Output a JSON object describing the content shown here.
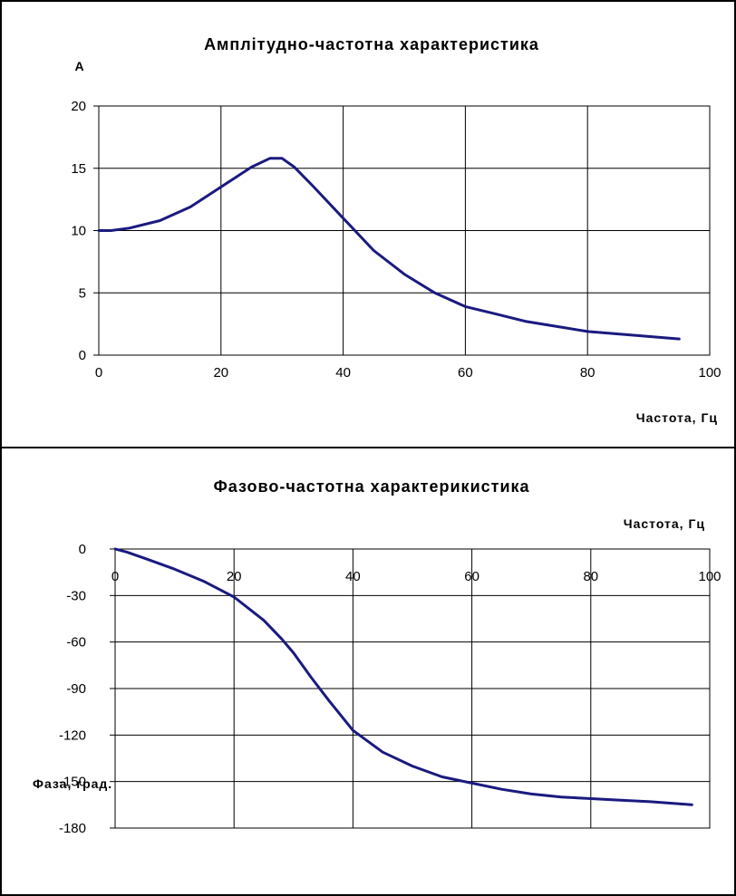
{
  "chart_data": [
    {
      "type": "line",
      "title": "Амплітудно-частотна характеристика",
      "ylabel": "А",
      "xlabel": "Частота, Гц",
      "xlim": [
        0,
        100
      ],
      "ylim": [
        0,
        20
      ],
      "x_ticks": [
        "0",
        "20",
        "40",
        "60",
        "80",
        "100"
      ],
      "y_ticks": [
        "20",
        "15",
        "10",
        "5",
        "0"
      ],
      "grid": true,
      "series": [
        {
          "color": "#1a1a80",
          "x": [
            0,
            2,
            5,
            10,
            15,
            20,
            25,
            28,
            30,
            32,
            35,
            40,
            45,
            50,
            55,
            60,
            65,
            70,
            75,
            80,
            85,
            90,
            95
          ],
          "y": [
            10.0,
            10.0,
            10.2,
            10.8,
            11.9,
            13.5,
            15.1,
            15.8,
            15.8,
            15.1,
            13.6,
            11.0,
            8.4,
            6.5,
            5.0,
            3.9,
            3.3,
            2.7,
            2.3,
            1.9,
            1.7,
            1.5,
            1.3
          ]
        }
      ]
    },
    {
      "type": "line",
      "title": "Фазово-частотна характерикистика",
      "xlabel": "Частота, Гц",
      "ylabel": "Фаза, град.",
      "xlim": [
        0,
        100
      ],
      "ylim": [
        -180,
        0
      ],
      "x_ticks": [
        "0",
        "20",
        "40",
        "60",
        "80",
        "100"
      ],
      "y_ticks": [
        "0",
        "-30",
        "-60",
        "-90",
        "-120",
        "-150",
        "-180"
      ],
      "grid": true,
      "series": [
        {
          "color": "#1a1a80",
          "x": [
            0,
            2,
            5,
            10,
            15,
            20,
            25,
            28,
            30,
            33,
            36,
            40,
            45,
            50,
            55,
            60,
            65,
            70,
            75,
            80,
            85,
            90,
            97
          ],
          "y": [
            0,
            -2,
            -6,
            -13,
            -21,
            -31,
            -46,
            -58,
            -67,
            -83,
            -98,
            -117,
            -131,
            -140,
            -147,
            -151,
            -155,
            -158,
            -160,
            -161,
            -162,
            -163,
            -165
          ]
        }
      ]
    }
  ]
}
